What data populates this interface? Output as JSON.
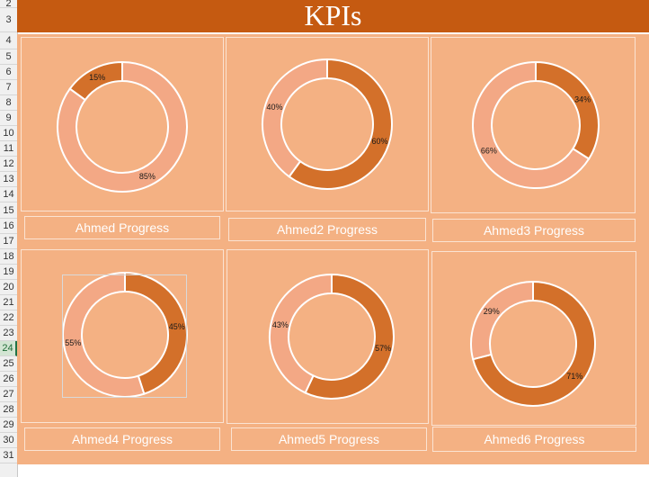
{
  "sheet": {
    "title": "KPIs",
    "row_numbers": [
      "2",
      "3",
      "4",
      "5",
      "6",
      "7",
      "8",
      "9",
      "10",
      "11",
      "12",
      "13",
      "14",
      "15",
      "16",
      "17",
      "18",
      "19",
      "20",
      "21",
      "22",
      "23",
      "24",
      "25",
      "26",
      "27",
      "28",
      "29",
      "30",
      "31"
    ],
    "selected_row": "24"
  },
  "colors": {
    "title_band": "#c55a11",
    "background": "#f4b183",
    "dark_slice": "#d3702a",
    "light_slice": "#f3a885",
    "border": "#fbe3d2"
  },
  "kpis": [
    {
      "label": "Ahmed Progress",
      "dark_pct_text": "15%",
      "light_pct_text": "85%",
      "dark_value": 15
    },
    {
      "label": "Ahmed2 Progress",
      "dark_pct_text": "60%",
      "light_pct_text": "40%",
      "dark_value": 60
    },
    {
      "label": "Ahmed3 Progress",
      "dark_pct_text": "34%",
      "light_pct_text": "66%",
      "dark_value": 34
    },
    {
      "label": "Ahmed4 Progress",
      "dark_pct_text": "45%",
      "light_pct_text": "55%",
      "dark_value": 45
    },
    {
      "label": "Ahmed5 Progress",
      "dark_pct_text": "57%",
      "light_pct_text": "43%",
      "dark_value": 57
    },
    {
      "label": "Ahmed6 Progress",
      "dark_pct_text": "71%",
      "light_pct_text": "29%",
      "dark_value": 71
    }
  ],
  "chart_data": [
    {
      "type": "pie",
      "labels": [
        "15%",
        "85%"
      ],
      "values": [
        15,
        85
      ]
    },
    {
      "type": "pie",
      "labels": [
        "60%",
        "40%"
      ],
      "values": [
        60,
        40
      ]
    },
    {
      "type": "pie",
      "labels": [
        "34%",
        "66%"
      ],
      "values": [
        34,
        66
      ]
    },
    {
      "type": "pie",
      "labels": [
        "45%",
        "55%"
      ],
      "values": [
        45,
        55
      ]
    },
    {
      "type": "pie",
      "labels": [
        "57%",
        "43%"
      ],
      "values": [
        57,
        43
      ]
    },
    {
      "type": "pie",
      "labels": [
        "71%",
        "29%"
      ],
      "values": [
        71,
        29
      ]
    }
  ]
}
